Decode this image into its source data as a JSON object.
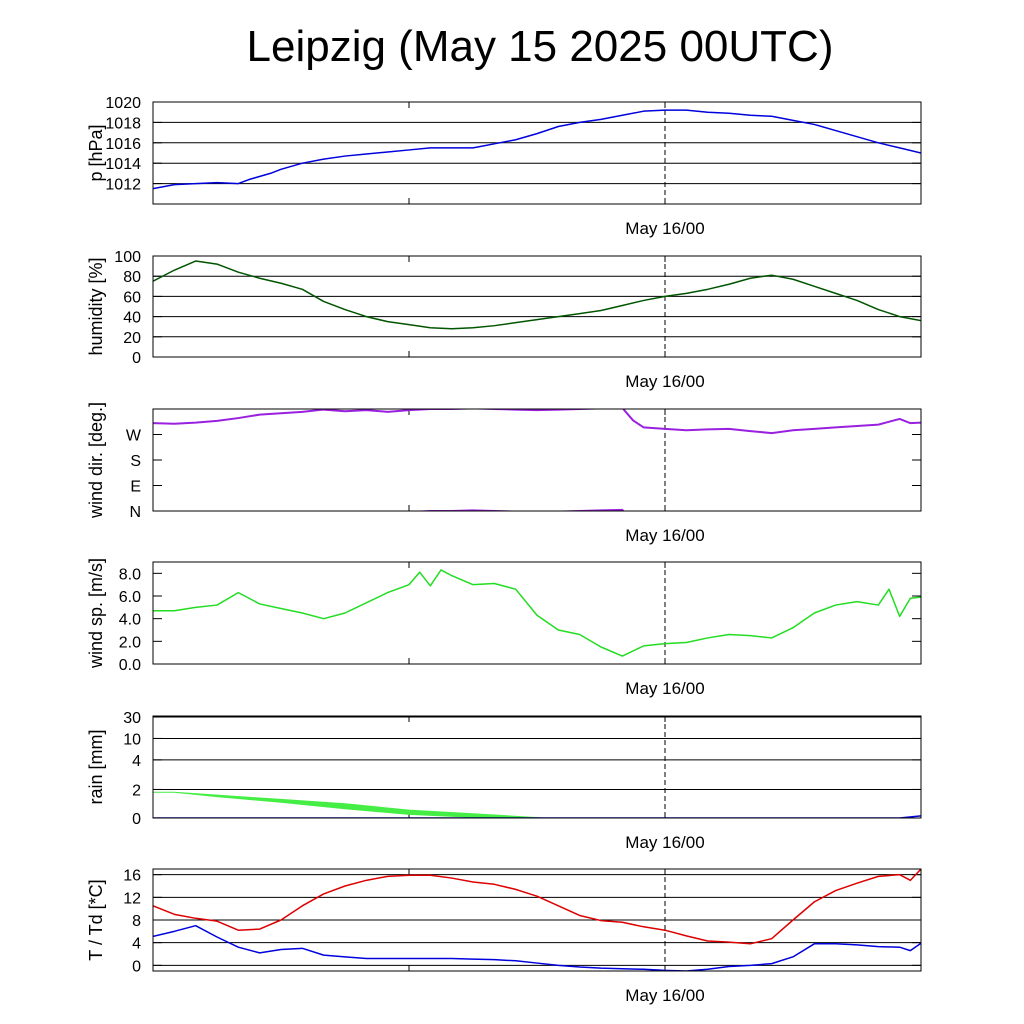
{
  "title": "Leipzig (May 15 2025 00UTC)",
  "x_marker_label": "May 16/00",
  "chart_data": [
    {
      "id": "pressure",
      "type": "line",
      "ylabel": "p [hPa]",
      "ylim": [
        1010,
        1020
      ],
      "ticks": [
        1012,
        1014,
        1016,
        1018,
        1020
      ],
      "grid": true,
      "x_unit": "hours since May 15 00UTC",
      "x_range": [
        0,
        36
      ],
      "series": [
        {
          "color": "#0000dd",
          "x": [
            0,
            1,
            2,
            3,
            4,
            4.5,
            5.5,
            6,
            7,
            8,
            9,
            10,
            11,
            12,
            13,
            14,
            15,
            16,
            17,
            18,
            19,
            20,
            21,
            22,
            23,
            24,
            25,
            26,
            27,
            28,
            29,
            30,
            31,
            32,
            33,
            34,
            35,
            36
          ],
          "y": [
            1011.5,
            1011.9,
            1012.0,
            1012.1,
            1012.0,
            1012.4,
            1013.0,
            1013.4,
            1014.0,
            1014.4,
            1014.7,
            1014.9,
            1015.1,
            1015.3,
            1015.5,
            1015.5,
            1015.5,
            1015.9,
            1016.3,
            1016.9,
            1017.6,
            1018.0,
            1018.3,
            1018.7,
            1019.1,
            1019.2,
            1019.2,
            1019.0,
            1018.9,
            1018.7,
            1018.6,
            1018.2,
            1017.8,
            1017.2,
            1016.6,
            1016.0,
            1015.5,
            1015.0
          ]
        }
      ]
    },
    {
      "id": "humidity",
      "type": "line",
      "ylabel": "humidity [%]",
      "ylim": [
        0,
        100
      ],
      "ticks": [
        0,
        20,
        40,
        60,
        80,
        100
      ],
      "grid": true,
      "x_unit": "hours since May 15 00UTC",
      "x_range": [
        0,
        36
      ],
      "series": [
        {
          "color": "#005500",
          "x": [
            0,
            1,
            2,
            3,
            4,
            5,
            6,
            7,
            8,
            9,
            10,
            11,
            12,
            13,
            14,
            15,
            16,
            17,
            18,
            19,
            20,
            21,
            22,
            23,
            24,
            25,
            26,
            27,
            28,
            29,
            30,
            31,
            32,
            33,
            34,
            35,
            36
          ],
          "y": [
            75,
            86,
            95,
            92,
            84,
            78,
            73,
            67,
            55,
            47,
            40,
            35,
            32,
            29,
            28,
            29,
            31,
            34,
            37,
            40,
            43,
            46,
            51,
            56,
            60,
            63,
            67,
            72,
            78,
            81,
            77,
            70,
            63,
            56,
            47,
            40,
            36
          ]
        }
      ]
    },
    {
      "id": "wind_dir",
      "type": "line",
      "ylabel": "wind dir. [deg.]",
      "ylim": [
        0,
        360
      ],
      "ticks": [
        0,
        90,
        180,
        270
      ],
      "tick_labels": [
        "N",
        "E",
        "S",
        "W"
      ],
      "grid": false,
      "x_unit": "hours since May 15 00UTC",
      "x_range": [
        0,
        36
      ],
      "series": [
        {
          "color": "#9a20e0",
          "x": [
            0,
            1,
            2,
            3,
            4,
            5,
            6,
            7,
            8,
            9,
            10,
            11,
            12,
            13,
            14,
            15,
            16,
            17,
            18,
            19,
            20,
            21,
            22,
            22.5,
            23,
            24,
            25,
            26,
            27,
            28,
            29,
            30,
            31,
            32,
            33,
            34,
            35,
            35.5,
            36
          ],
          "y": [
            310,
            308,
            312,
            318,
            328,
            340,
            345,
            350,
            358,
            352,
            356,
            350,
            356,
            360,
            360,
            362,
            360,
            358,
            356,
            358,
            360,
            362,
            364,
            320,
            295,
            290,
            285,
            288,
            290,
            282,
            275,
            285,
            290,
            295,
            300,
            305,
            325,
            310,
            312
          ]
        }
      ]
    },
    {
      "id": "wind_speed",
      "type": "line",
      "ylabel": "wind sp. [m/s]",
      "ylim": [
        0,
        9
      ],
      "ticks": [
        0,
        2,
        4,
        6,
        8
      ],
      "tick_labels": [
        "0.0",
        "2.0",
        "4.0",
        "6.0",
        "8.0"
      ],
      "grid": false,
      "x_unit": "hours since May 15 00UTC",
      "x_range": [
        0,
        36
      ],
      "series": [
        {
          "color": "#22dd22",
          "x": [
            0,
            1,
            2,
            3,
            4,
            5,
            6,
            7,
            8,
            9,
            10,
            11,
            12,
            12.5,
            13,
            13.5,
            14,
            15,
            16,
            17,
            18,
            19,
            20,
            21,
            22,
            23,
            24,
            25,
            26,
            27,
            28,
            29,
            30,
            31,
            32,
            33,
            34,
            34.5,
            35,
            35.5,
            36
          ],
          "y": [
            4.7,
            4.7,
            5.0,
            5.2,
            6.3,
            5.3,
            4.9,
            4.5,
            4.0,
            4.5,
            5.4,
            6.3,
            7.0,
            8.1,
            6.9,
            8.3,
            7.8,
            7.0,
            7.1,
            6.6,
            4.3,
            3.0,
            2.6,
            1.5,
            0.7,
            1.6,
            1.8,
            1.9,
            2.3,
            2.6,
            2.5,
            2.3,
            3.2,
            4.5,
            5.2,
            5.5,
            5.2,
            6.6,
            4.2,
            5.8,
            5.9
          ]
        }
      ]
    },
    {
      "id": "rain",
      "type": "area",
      "ylabel": "rain [mm]",
      "ylim": [
        0,
        30
      ],
      "ticks": [
        0,
        2,
        4,
        10,
        30
      ],
      "grid": true,
      "x_unit": "hours since May 15 00UTC",
      "x_range": [
        0,
        36
      ],
      "series": [
        {
          "color": "#44ee44",
          "x": [
            0,
            1,
            3,
            6,
            9,
            12,
            15,
            18.3
          ],
          "upper": [
            1.8,
            1.8,
            1.6,
            1.3,
            1.0,
            0.55,
            0.3,
            0
          ],
          "lower": [
            1.8,
            1.8,
            1.5,
            1.1,
            0.65,
            0.25,
            0.05,
            0
          ]
        },
        {
          "color": "#0000dd",
          "x": [
            0,
            35,
            36
          ],
          "y": [
            0,
            0,
            0.15
          ]
        }
      ]
    },
    {
      "id": "temperature",
      "type": "line",
      "ylabel": "T / Td [*C]",
      "ylim": [
        -1,
        17
      ],
      "ticks": [
        0,
        4,
        8,
        12,
        16
      ],
      "grid": true,
      "x_unit": "hours since May 15 00UTC",
      "x_range": [
        0,
        36
      ],
      "series": [
        {
          "color": "#dd0000",
          "x": [
            0,
            1,
            2,
            3,
            4,
            5,
            6,
            7,
            8,
            9,
            10,
            11,
            12,
            13,
            14,
            15,
            16,
            17,
            18,
            19,
            20,
            21,
            22,
            23,
            24,
            25,
            26,
            27,
            28,
            29,
            30,
            31,
            32,
            33,
            34,
            35,
            35.5,
            36
          ],
          "y": [
            10.5,
            9.0,
            8.3,
            7.8,
            6.2,
            6.4,
            8.0,
            10.5,
            12.6,
            14.0,
            15.0,
            15.7,
            15.9,
            15.9,
            15.4,
            14.7,
            14.3,
            13.4,
            12.2,
            10.5,
            8.8,
            7.9,
            7.6,
            6.8,
            6.2,
            5.2,
            4.3,
            4.1,
            3.8,
            4.7,
            8.0,
            11.2,
            13.2,
            14.5,
            15.7,
            16.0,
            15.0,
            17.0
          ]
        },
        {
          "color": "#0000dd",
          "x": [
            0,
            1,
            2,
            3,
            4,
            5,
            6,
            7,
            8,
            9,
            10,
            11,
            12,
            13,
            14,
            15,
            16,
            17,
            18,
            19,
            20,
            21,
            22,
            23,
            24,
            25,
            26,
            27,
            28,
            29,
            30,
            31,
            32,
            33,
            34,
            35,
            35.5,
            36
          ],
          "y": [
            5.1,
            6.0,
            7.0,
            5.0,
            3.2,
            2.2,
            2.8,
            3.0,
            1.8,
            1.5,
            1.2,
            1.2,
            1.2,
            1.2,
            1.2,
            1.1,
            1.0,
            0.8,
            0.4,
            0.0,
            -0.3,
            -0.5,
            -0.6,
            -0.7,
            -0.9,
            -1.0,
            -0.7,
            -0.2,
            0.0,
            0.3,
            1.5,
            3.8,
            3.8,
            3.6,
            3.3,
            3.2,
            2.6,
            3.9
          ]
        }
      ]
    }
  ]
}
